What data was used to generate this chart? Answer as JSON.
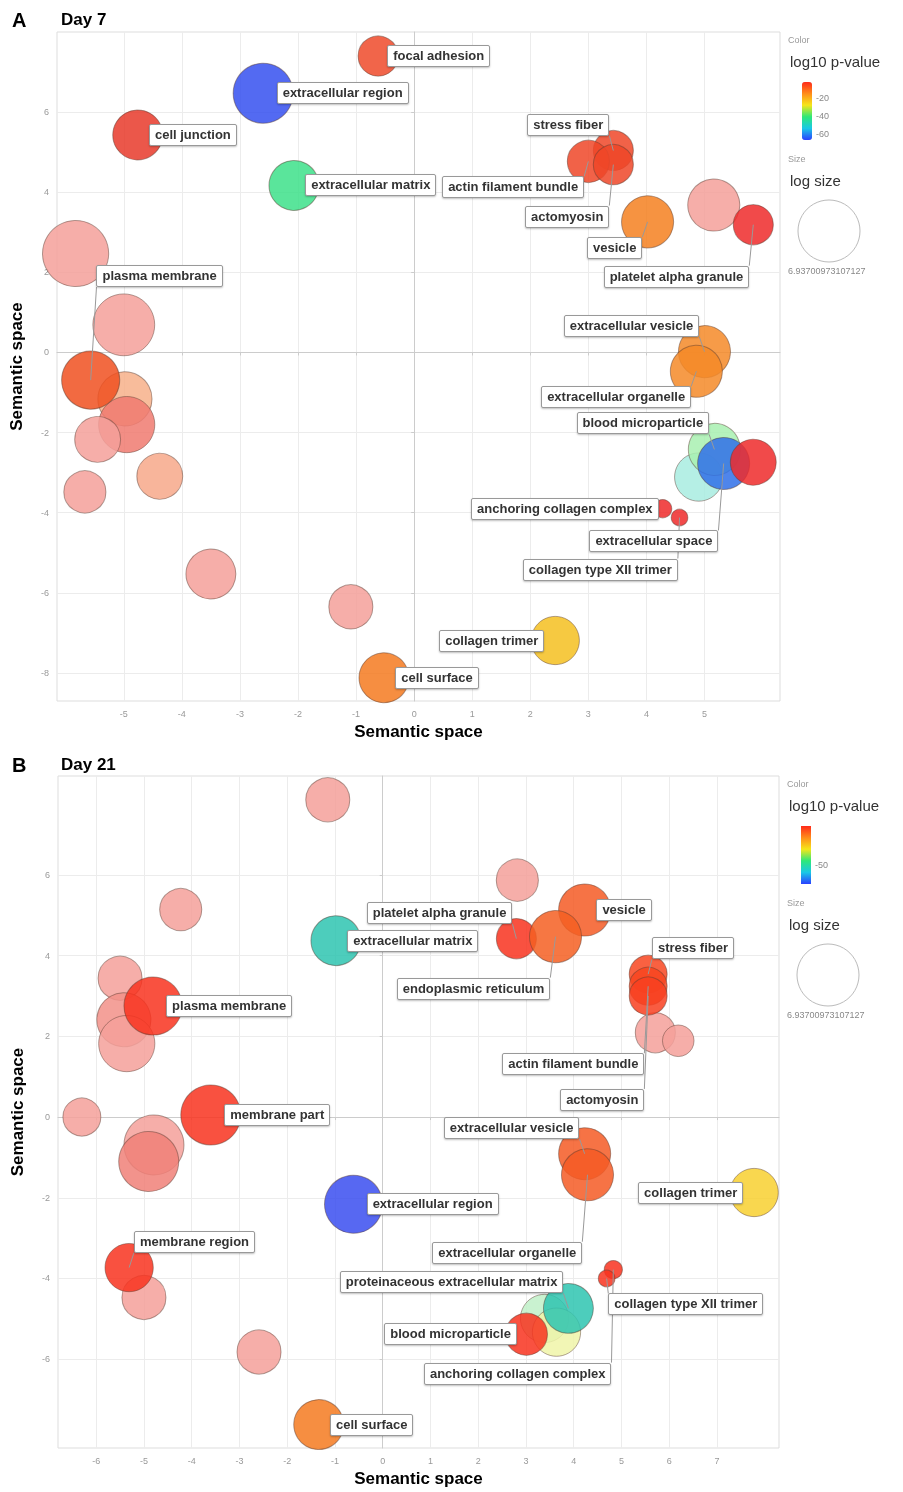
{
  "chart_data": [
    {
      "type": "bubble",
      "title": "Day 7",
      "xlabel": "Semantic space",
      "ylabel": "Semantic space",
      "clabel": "log10 p-value",
      "xlim": [
        -6.15,
        6.3
      ],
      "ylim": [
        -8.7,
        8.0
      ],
      "xticks": [
        -5,
        -4,
        -3,
        -2,
        -1,
        0,
        1,
        2,
        3,
        4,
        5
      ],
      "yticks": [
        -8,
        -6,
        -4,
        -2,
        0,
        2,
        4,
        6
      ],
      "clim": [
        -66,
        -3
      ],
      "cticks": [
        -60,
        -40,
        -20
      ],
      "size_legend": [
        6.93700973107127
      ],
      "grid": true,
      "series": [
        {
          "x": [
            -5.83,
            -5.0,
            -4.98,
            -4.95,
            -5.45,
            -4.38,
            -5.67,
            -3.5,
            -1.09,
            5.16,
            4.9
          ],
          "values": [
            2.47,
            0.69,
            -1.16,
            -1.8,
            -2.17,
            -3.09,
            -3.48,
            -5.53,
            -6.35,
            3.68,
            -3.11
          ],
          "sizes": [
            7.9,
            6.9,
            5.3,
            5.7,
            3.8,
            3.8,
            3.2,
            4.5,
            3.5,
            4.9,
            4.2
          ],
          "colors": [
            "#f4a09a",
            "#f4a09a",
            "#f7b08a",
            "#f07a70",
            "#f4a09a",
            "#f7a88a",
            "#f4a09a",
            "#f4a09a",
            "#f4a09a",
            "#f4a09a",
            "#a8ece0"
          ]
        },
        {
          "x": [
            -0.62,
            -2.6,
            -4.76,
            -2.07,
            -5.57,
            -0.52,
            2.43,
            3.43,
            3.0,
            3.43,
            4.02,
            5.84,
            5.0,
            4.86,
            5.17,
            5.33,
            5.84,
            4.28,
            4.57
          ],
          "values": [
            7.4,
            6.47,
            5.43,
            4.17,
            -0.69,
            -8.12,
            -7.19,
            5.04,
            4.77,
            4.69,
            3.26,
            3.19,
            0.02,
            -0.47,
            -2.42,
            -2.77,
            -2.74,
            -3.9,
            -4.12
          ],
          "sizes": [
            2.9,
            6.5,
            4.5,
            4.5,
            6.1,
            4.5,
            4.2,
            2.9,
            3.2,
            2.9,
            4.9,
            2.9,
            4.9,
            4.9,
            4.9,
            4.9,
            3.8,
            0.6,
            0.5
          ],
          "colors": [
            "#ee4a2a",
            "#3550f0",
            "#e83a2a",
            "#3de08a",
            "#f05020",
            "#f57a20",
            "#f5c020",
            "#ef4628",
            "#ef4628",
            "#ef4628",
            "#f58020",
            "#ee2a2a",
            "#f58a28",
            "#f58a28",
            "#a8f0b0",
            "#3070e8",
            "#ee2a2a",
            "#ee2a2a",
            "#ee2a2a"
          ]
        }
      ],
      "annotations": [
        "A",
        "Color",
        "Size",
        "log size",
        {
          "text": "focal adhesion",
          "x": -0.62,
          "y": 7.4
        },
        {
          "text": "extracellular region",
          "x": -2.6,
          "y": 6.47
        },
        {
          "text": "cell junction",
          "x": -4.76,
          "y": 5.43
        },
        {
          "text": "extracellular matrix",
          "x": -2.07,
          "y": 4.17
        },
        {
          "text": "plasma membrane",
          "x": -5.57,
          "y": -0.69
        },
        {
          "text": "cell surface",
          "x": -0.52,
          "y": -8.12
        },
        {
          "text": "collagen trimer",
          "x": 2.43,
          "y": -7.19
        },
        {
          "text": "stress fiber",
          "x": 3.43,
          "y": 5.04
        },
        {
          "text": "actin filament bundle",
          "x": 3.0,
          "y": 4.77
        },
        {
          "text": "actomyosin",
          "x": 3.43,
          "y": 4.69
        },
        {
          "text": "vesicle",
          "x": 4.02,
          "y": 3.26
        },
        {
          "text": "platelet alpha granule",
          "x": 5.84,
          "y": 3.19
        },
        {
          "text": "extracellular vesicle",
          "x": 5.0,
          "y": 0.02
        },
        {
          "text": "extracellular organelle",
          "x": 4.86,
          "y": -0.47
        },
        {
          "text": "blood microparticle",
          "x": 5.17,
          "y": -2.42
        },
        {
          "text": "extracellular space",
          "x": 5.33,
          "y": -2.77
        },
        {
          "text": "anchoring collagen complex",
          "x": 4.28,
          "y": -3.9
        },
        {
          "text": "collagen type XII trimer",
          "x": 4.57,
          "y": -4.12
        }
      ]
    },
    {
      "type": "bubble",
      "title": "Day 21",
      "xlabel": "Semantic space",
      "ylabel": "Semantic space",
      "clabel": "log10 p-value",
      "xlim": [
        -6.8,
        8.3
      ],
      "ylim": [
        -8.2,
        8.45
      ],
      "xticks": [
        -6,
        -5,
        -4,
        -3,
        -2,
        -1,
        0,
        1,
        2,
        3,
        4,
        5,
        6,
        7
      ],
      "yticks": [
        -6,
        -4,
        -2,
        0,
        2,
        4,
        6
      ],
      "size_legend": [
        6.93700973107127
      ],
      "grid": true,
      "series": [
        {
          "x": [
            -1.15,
            -4.23,
            -5.5,
            -5.42,
            -5.36,
            -6.3,
            -4.79,
            -4.9,
            -5.0,
            -2.59,
            2.82,
            5.71,
            6.19,
            3.39,
            3.64
          ],
          "values": [
            7.86,
            5.14,
            3.44,
            2.41,
            1.82,
            0,
            -0.69,
            -1.1,
            -4.47,
            -5.82,
            5.87,
            2.09,
            1.89,
            -4.99,
            -5.33
          ],
          "sizes": [
            3.5,
            3.2,
            3.5,
            5.3,
            5.7,
            2.6,
            6.5,
            6.5,
            3.5,
            3.5,
            3.2,
            2.9,
            1.8,
            4.2,
            4.2
          ],
          "colors": [
            "#f4a09a",
            "#f4a09a",
            "#f4a09a",
            "#f29088",
            "#f4a09a",
            "#f4a09a",
            "#f4a09a",
            "#f08078",
            "#f4a09a",
            "#f4a09a",
            "#f4a09a",
            "#f4a09a",
            "#f4a09a",
            "#c0f0c8",
            "#f0f5a8"
          ]
        },
        {
          "x": [
            -0.98,
            -4.81,
            -3.6,
            -0.61,
            -5.31,
            -1.34,
            2.8,
            4.23,
            3.62,
            5.56,
            5.56,
            5.56,
            4.23,
            4.29,
            7.78,
            4.83,
            4.69,
            3.89,
            3.01
          ],
          "values": [
            4.37,
            2.75,
            0.05,
            -2.16,
            -3.73,
            -7.62,
            4.42,
            5.13,
            4.47,
            3.54,
            3.24,
            3.0,
            -0.91,
            -1.43,
            -1.87,
            -3.78,
            -4.0,
            -4.74,
            -5.38
          ],
          "sizes": [
            4.5,
            6.1,
            6.5,
            6.1,
            4.2,
            4.5,
            2.9,
            4.9,
            4.9,
            2.6,
            2.6,
            2.6,
            4.9,
            4.9,
            4.2,
            0.6,
            0.5,
            4.5,
            3.2
          ],
          "colors": [
            "#2ec4b0",
            "#f8321e",
            "#f8321e",
            "#3a4ef0",
            "#f8321e",
            "#f57a20",
            "#f8321e",
            "#f55a25",
            "#f55f22",
            "#f84520",
            "#f84520",
            "#f84020",
            "#f55a25",
            "#f55a25",
            "#f8d030",
            "#f8321e",
            "#f8321e",
            "#2ec4b0",
            "#f8321e"
          ]
        }
      ],
      "annotations": [
        "B",
        "Color",
        "Size",
        "log size",
        "-50",
        {
          "text": "extracellular matrix",
          "x": -0.98,
          "y": 4.37
        },
        {
          "text": "plasma membrane",
          "x": -4.81,
          "y": 2.75
        },
        {
          "text": "membrane part",
          "x": -3.6,
          "y": 0.05
        },
        {
          "text": "extracellular region",
          "x": -0.61,
          "y": -2.16
        },
        {
          "text": "membrane region",
          "x": -5.31,
          "y": -3.73
        },
        {
          "text": "cell surface",
          "x": -1.34,
          "y": -7.62
        },
        {
          "text": "platelet alpha granule",
          "x": 2.8,
          "y": 4.42
        },
        {
          "text": "vesicle",
          "x": 4.23,
          "y": 5.13
        },
        {
          "text": "endoplasmic reticulum",
          "x": 3.62,
          "y": 4.47
        },
        {
          "text": "stress fiber",
          "x": 5.56,
          "y": 3.54
        },
        {
          "text": "actin filament bundle",
          "x": 5.56,
          "y": 3.24
        },
        {
          "text": "actomyosin",
          "x": 5.56,
          "y": 3.0
        },
        {
          "text": "extracellular vesicle",
          "x": 4.23,
          "y": -0.91
        },
        {
          "text": "extracellular organelle",
          "x": 4.29,
          "y": -1.43
        },
        {
          "text": "collagen trimer",
          "x": 7.78,
          "y": -1.87
        },
        {
          "text": "anchoring collagen complex",
          "x": 4.83,
          "y": -3.78
        },
        {
          "text": "collagen type XII trimer",
          "x": 4.69,
          "y": -4.0
        },
        {
          "text": "proteinaceous extracellular matrix",
          "x": 3.89,
          "y": -4.74
        },
        {
          "text": "blood microparticle",
          "x": 3.01,
          "y": -5.38
        }
      ]
    }
  ]
}
